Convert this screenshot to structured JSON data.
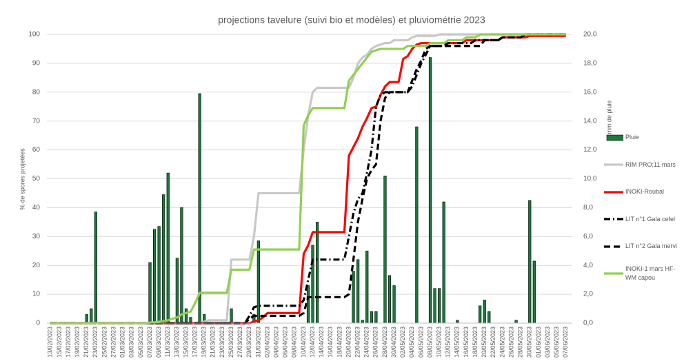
{
  "chart_data": {
    "type": "combo",
    "title": "projections tavelure (suivi bio et modèles)  et pluviométrie 2023",
    "ylabel": "% de spores projetées",
    "y2label": "mm de pluie",
    "categories": [
      "13/02/2023",
      null,
      "15/02/2023",
      null,
      "17/02/2023",
      null,
      "19/02/2023",
      null,
      "21/02/2023",
      null,
      "23/02/2023",
      null,
      "25/02/2023",
      null,
      "27/02/2023",
      null,
      "01/03/2023",
      null,
      "03/03/2023",
      null,
      "05/03/2023",
      null,
      "07/03/2023",
      null,
      "09/03/2023",
      null,
      "11/03/2023",
      null,
      "13/03/2023",
      null,
      "15/03/2023",
      null,
      "17/03/2023",
      null,
      "19/03/2023",
      null,
      "21/03/2023",
      null,
      "23/03/2023",
      null,
      "25/03/2023",
      null,
      "27/03/2023",
      null,
      "29/03/2023",
      null,
      "31/03/2023",
      null,
      "02/04/2023",
      null,
      "04/04/2023",
      null,
      "06/04/2023",
      null,
      "08/04/2023",
      null,
      "10/04/2023",
      null,
      "12/04/2023",
      null,
      "14/04/2023",
      null,
      "16/04/2023",
      null,
      "18/04/2023",
      null,
      "20/04/2023",
      null,
      "22/04/2023",
      null,
      "24/04/2023",
      null,
      "26/04/2023",
      null,
      "28/04/2023",
      null,
      "30/04/2023",
      null,
      "02/05/2023",
      null,
      "04/05/2023",
      null,
      "06/05/2023",
      null,
      "08/05/2023",
      null,
      "10/05/2023",
      null,
      "12/05/2023",
      null,
      "14/05/2023",
      null,
      "16/05/2023",
      null,
      "18/05/2023",
      null,
      "20/05/2023",
      null,
      "22/05/2023",
      null,
      "24/05/2023",
      null,
      "26/05/2023",
      null,
      "28/05/2023",
      null,
      "30/05/2023",
      null,
      "01/06/2023",
      null,
      "03/06/2023",
      null,
      "05/06/2023",
      null,
      "07/06/2023"
    ],
    "series": [
      {
        "name": "Pluie",
        "type": "bar",
        "axis": "y2",
        "color": "#1a7a3a",
        "values": [
          0,
          0,
          0,
          0,
          0,
          0,
          0,
          0,
          0.6,
          1,
          7.7,
          0,
          0,
          0,
          0,
          0,
          0,
          0,
          0,
          0,
          0,
          0,
          4.2,
          6.5,
          6.7,
          8.9,
          10.4,
          0,
          4.5,
          8,
          1,
          0.4,
          0,
          15.9,
          0.6,
          0,
          0,
          0,
          0,
          0,
          1,
          0,
          0,
          0,
          0,
          0.6,
          5.7,
          0,
          0,
          0,
          0,
          0,
          0,
          0,
          0,
          0,
          0,
          2.6,
          5.4,
          7,
          0,
          0,
          0,
          0,
          0,
          0,
          0,
          3.6,
          4.4,
          0.2,
          5,
          0.8,
          0.8,
          0,
          10.2,
          3.3,
          2.6,
          0,
          0,
          0,
          0,
          13.6,
          0,
          0,
          18.4,
          2.4,
          2.4,
          8.4,
          0,
          0,
          0.2,
          0,
          0,
          0,
          0,
          1.2,
          1.6,
          0.8,
          0,
          0,
          0,
          0,
          0,
          0.2,
          0,
          0,
          8.5,
          4.3,
          0,
          0,
          0,
          0,
          0,
          0,
          0
        ]
      },
      {
        "name": "RIM PRO;11 mars",
        "type": "line",
        "dash": "solid",
        "color": "#c8c8c8",
        "values": [
          0,
          0,
          0,
          0,
          0,
          0,
          0,
          0,
          0,
          0,
          0,
          0,
          0,
          0,
          0,
          0,
          0,
          0,
          0,
          0,
          0,
          0,
          0,
          0,
          0,
          0,
          0,
          0,
          0,
          0,
          0,
          0,
          0,
          0,
          0.5,
          1,
          1,
          1,
          1,
          1,
          22,
          22,
          22,
          22,
          22,
          30,
          45,
          45,
          45,
          45,
          45,
          45,
          45,
          45,
          45,
          45,
          60,
          72,
          80,
          81.5,
          81.5,
          81.5,
          81.5,
          81.5,
          81.5,
          81.5,
          81.5,
          85,
          90,
          92,
          93,
          95,
          96,
          96.5,
          97,
          97,
          98,
          98,
          98,
          98,
          99,
          99.5,
          99.5,
          99.5,
          99.5,
          99.5,
          100,
          100,
          100,
          100,
          100,
          100,
          100,
          100,
          100,
          100,
          100,
          100,
          100,
          100,
          100,
          100,
          100,
          100,
          100,
          100,
          100,
          100,
          100,
          100,
          100,
          100,
          100,
          100,
          100
        ]
      },
      {
        "name": "INOKI-Roubal",
        "type": "line",
        "dash": "solid",
        "color": "#ff0000",
        "values": [
          0,
          0,
          0,
          0,
          0,
          0,
          0,
          0,
          0,
          0,
          0,
          0,
          0,
          0,
          0,
          0,
          0,
          0,
          0,
          0,
          0,
          0,
          0,
          0,
          0,
          0,
          0,
          0,
          0,
          0,
          0,
          0,
          0,
          0,
          0,
          0,
          0,
          0,
          0,
          0,
          0,
          0,
          0,
          0,
          0,
          0.5,
          1,
          2,
          3.5,
          3.5,
          3.5,
          3.5,
          3.5,
          3.5,
          3.5,
          3.5,
          24,
          27,
          31.5,
          31.5,
          31.5,
          31.5,
          31.5,
          31.5,
          31.5,
          31.5,
          58,
          61,
          64,
          68,
          71,
          74.5,
          75,
          79,
          82,
          83.5,
          83.5,
          83.5,
          91.5,
          92.5,
          95,
          96.5,
          97,
          97,
          97,
          97,
          97,
          97,
          97,
          97,
          97,
          97,
          98,
          98,
          98,
          98,
          98,
          98,
          98,
          98,
          99,
          99,
          99,
          99,
          99,
          99,
          99.5,
          99.5,
          99.5,
          99.5,
          99.5,
          99.5,
          99.5,
          99.5,
          99.5
        ]
      },
      {
        "name": "LIT n°1 Gala cefel",
        "type": "line",
        "dash": "dashdot",
        "color": "#000000",
        "values": [
          0,
          0,
          0,
          0,
          0,
          0,
          0,
          0,
          0,
          0,
          0,
          0,
          0,
          0,
          0,
          0,
          0,
          0,
          0,
          0,
          0,
          0,
          0,
          0,
          0,
          0,
          0,
          0,
          0,
          0,
          0,
          0,
          0,
          0,
          0,
          0,
          0,
          0,
          0,
          0,
          0,
          0,
          0,
          0,
          2.5,
          5.5,
          6,
          6,
          6,
          6,
          6,
          6,
          6,
          6,
          6,
          6,
          8,
          15,
          22,
          22,
          22,
          22,
          22,
          22,
          22,
          22,
          30,
          38,
          43,
          45,
          52,
          60,
          75,
          79,
          80,
          80,
          80,
          80,
          80,
          80,
          82,
          86,
          90,
          93,
          96,
          96,
          96,
          96,
          97,
          97,
          97,
          97,
          97,
          97,
          98,
          98,
          98,
          98,
          98,
          98,
          99,
          99,
          99,
          99,
          99,
          100,
          100,
          100,
          100,
          100,
          100,
          100,
          100,
          100,
          100
        ]
      },
      {
        "name": "LIT n°2 Gala mervi",
        "type": "line",
        "dash": "dash",
        "color": "#000000",
        "values": [
          0,
          0,
          0,
          0,
          0,
          0,
          0,
          0,
          0,
          0,
          0,
          0,
          0,
          0,
          0,
          0,
          0,
          0,
          0,
          0,
          0,
          0,
          0,
          0,
          0,
          0,
          0,
          0,
          0,
          0,
          0,
          0,
          0,
          0,
          0,
          0,
          0,
          0,
          0,
          0,
          0,
          0,
          0,
          0,
          1.5,
          2.5,
          2.5,
          2.5,
          2.5,
          2.5,
          2.5,
          2.5,
          2.5,
          2.5,
          2.5,
          2.5,
          3.5,
          9,
          9,
          9,
          9,
          9,
          9,
          9,
          9,
          9,
          10,
          22,
          35,
          43,
          50,
          53,
          55,
          70,
          78,
          80,
          80,
          80,
          80,
          80,
          84,
          88,
          91,
          95,
          96,
          96,
          96,
          96,
          96,
          96,
          96,
          96,
          96,
          96,
          96,
          96,
          98,
          98,
          98,
          98,
          99,
          99,
          99,
          99,
          99,
          100,
          100,
          100,
          100,
          100,
          100,
          100,
          100,
          100,
          100
        ]
      },
      {
        "name": "INOKI-1 mars HF-WM capou",
        "type": "line",
        "dash": "solid",
        "color": "#92d050",
        "values": [
          0,
          0,
          0,
          0,
          0,
          0,
          0,
          0,
          0,
          0,
          0,
          0,
          0,
          0,
          0,
          0,
          0,
          0,
          0,
          0,
          0,
          0,
          0.2,
          0.3,
          0.5,
          0.7,
          1,
          1.5,
          2,
          3,
          3.5,
          4,
          7,
          10.5,
          10.5,
          10.5,
          10.5,
          10.5,
          10.5,
          10.5,
          18.5,
          18.5,
          18.5,
          18.5,
          18.5,
          25.5,
          25.5,
          25.5,
          25.5,
          25.5,
          25.5,
          25.5,
          25.5,
          25.5,
          25.5,
          25.5,
          68.5,
          72,
          74.5,
          74.5,
          74.5,
          74.5,
          74.5,
          74.5,
          74.5,
          74.5,
          84,
          86,
          88,
          90,
          92,
          94,
          94.5,
          95,
          95,
          95,
          95,
          95,
          95,
          96,
          96,
          96,
          96,
          96,
          97,
          97,
          97,
          97,
          98,
          98,
          98,
          98,
          99,
          99,
          99,
          100,
          100,
          100,
          100,
          100,
          100,
          100,
          100,
          100,
          100,
          100,
          100,
          100,
          100,
          100,
          100,
          100,
          100,
          100,
          100
        ]
      }
    ],
    "ylim": [
      0,
      100
    ],
    "yticks": [
      0,
      10,
      20,
      30,
      40,
      50,
      60,
      70,
      80,
      90,
      100
    ],
    "y2lim": [
      0,
      20
    ],
    "y2ticks": [
      {
        "value": 0,
        "label": "0,0"
      },
      {
        "value": 2,
        "label": "2,0"
      },
      {
        "value": 4,
        "label": "4,0"
      },
      {
        "value": 6,
        "label": "6,0"
      },
      {
        "value": 8,
        "label": "8,0"
      },
      {
        "value": 10,
        "label": "10,0"
      },
      {
        "value": 12,
        "label": "12,0"
      },
      {
        "value": 14,
        "label": "14,0"
      },
      {
        "value": 16,
        "label": "16,0"
      },
      {
        "value": 18,
        "label": "18,0"
      },
      {
        "value": 20,
        "label": "20,0"
      }
    ],
    "grid": true,
    "legend": "right"
  }
}
